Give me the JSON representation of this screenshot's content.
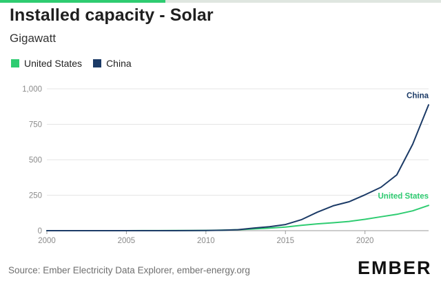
{
  "header": {
    "title": "Installed capacity - Solar",
    "subtitle": "Gigawatt"
  },
  "legend": {
    "items": [
      {
        "label": "United States",
        "color": "#2ecc71"
      },
      {
        "label": "China",
        "color": "#1b3a66"
      }
    ]
  },
  "colors": {
    "accent": "#2ecc71",
    "us": "#2ecc71",
    "china": "#1b3a66",
    "grid": "#e4e4e4",
    "axis": "#9a9a9a",
    "topbar": "#dfe6e0"
  },
  "footer": {
    "source": "Source: Ember Electricity Data Explorer, ember-energy.org",
    "logo": "EMBER"
  },
  "chart_data": {
    "type": "line",
    "title": "Installed capacity - Solar",
    "ylabel": "Gigawatt",
    "xlabel": "",
    "xlim": [
      2000,
      2024
    ],
    "ylim": [
      0,
      1000
    ],
    "x_ticks": [
      2000,
      2005,
      2010,
      2015,
      2020
    ],
    "y_ticks": [
      0,
      250,
      500,
      750,
      1000
    ],
    "y_tick_labels": [
      "0",
      "250",
      "500",
      "750",
      "1,000"
    ],
    "grid": true,
    "legend_position": "top-left",
    "x": [
      2000,
      2001,
      2002,
      2003,
      2004,
      2005,
      2006,
      2007,
      2008,
      2009,
      2010,
      2011,
      2012,
      2013,
      2014,
      2015,
      2016,
      2017,
      2018,
      2019,
      2020,
      2021,
      2022,
      2023,
      2024
    ],
    "series": [
      {
        "name": "United States",
        "end_label": "United States",
        "values": [
          0.02,
          0.03,
          0.04,
          0.06,
          0.1,
          0.2,
          0.3,
          0.5,
          0.8,
          1.2,
          2.0,
          3.5,
          7.0,
          12,
          18,
          25,
          38,
          48,
          56,
          65,
          80,
          98,
          115,
          140,
          178
        ]
      },
      {
        "name": "China",
        "end_label": "China",
        "values": [
          0.02,
          0.03,
          0.04,
          0.05,
          0.06,
          0.07,
          0.08,
          0.1,
          0.14,
          0.3,
          0.8,
          3.0,
          6.7,
          18,
          28,
          43,
          77,
          130,
          175,
          204,
          253,
          306,
          393,
          609,
          887
        ]
      }
    ]
  }
}
